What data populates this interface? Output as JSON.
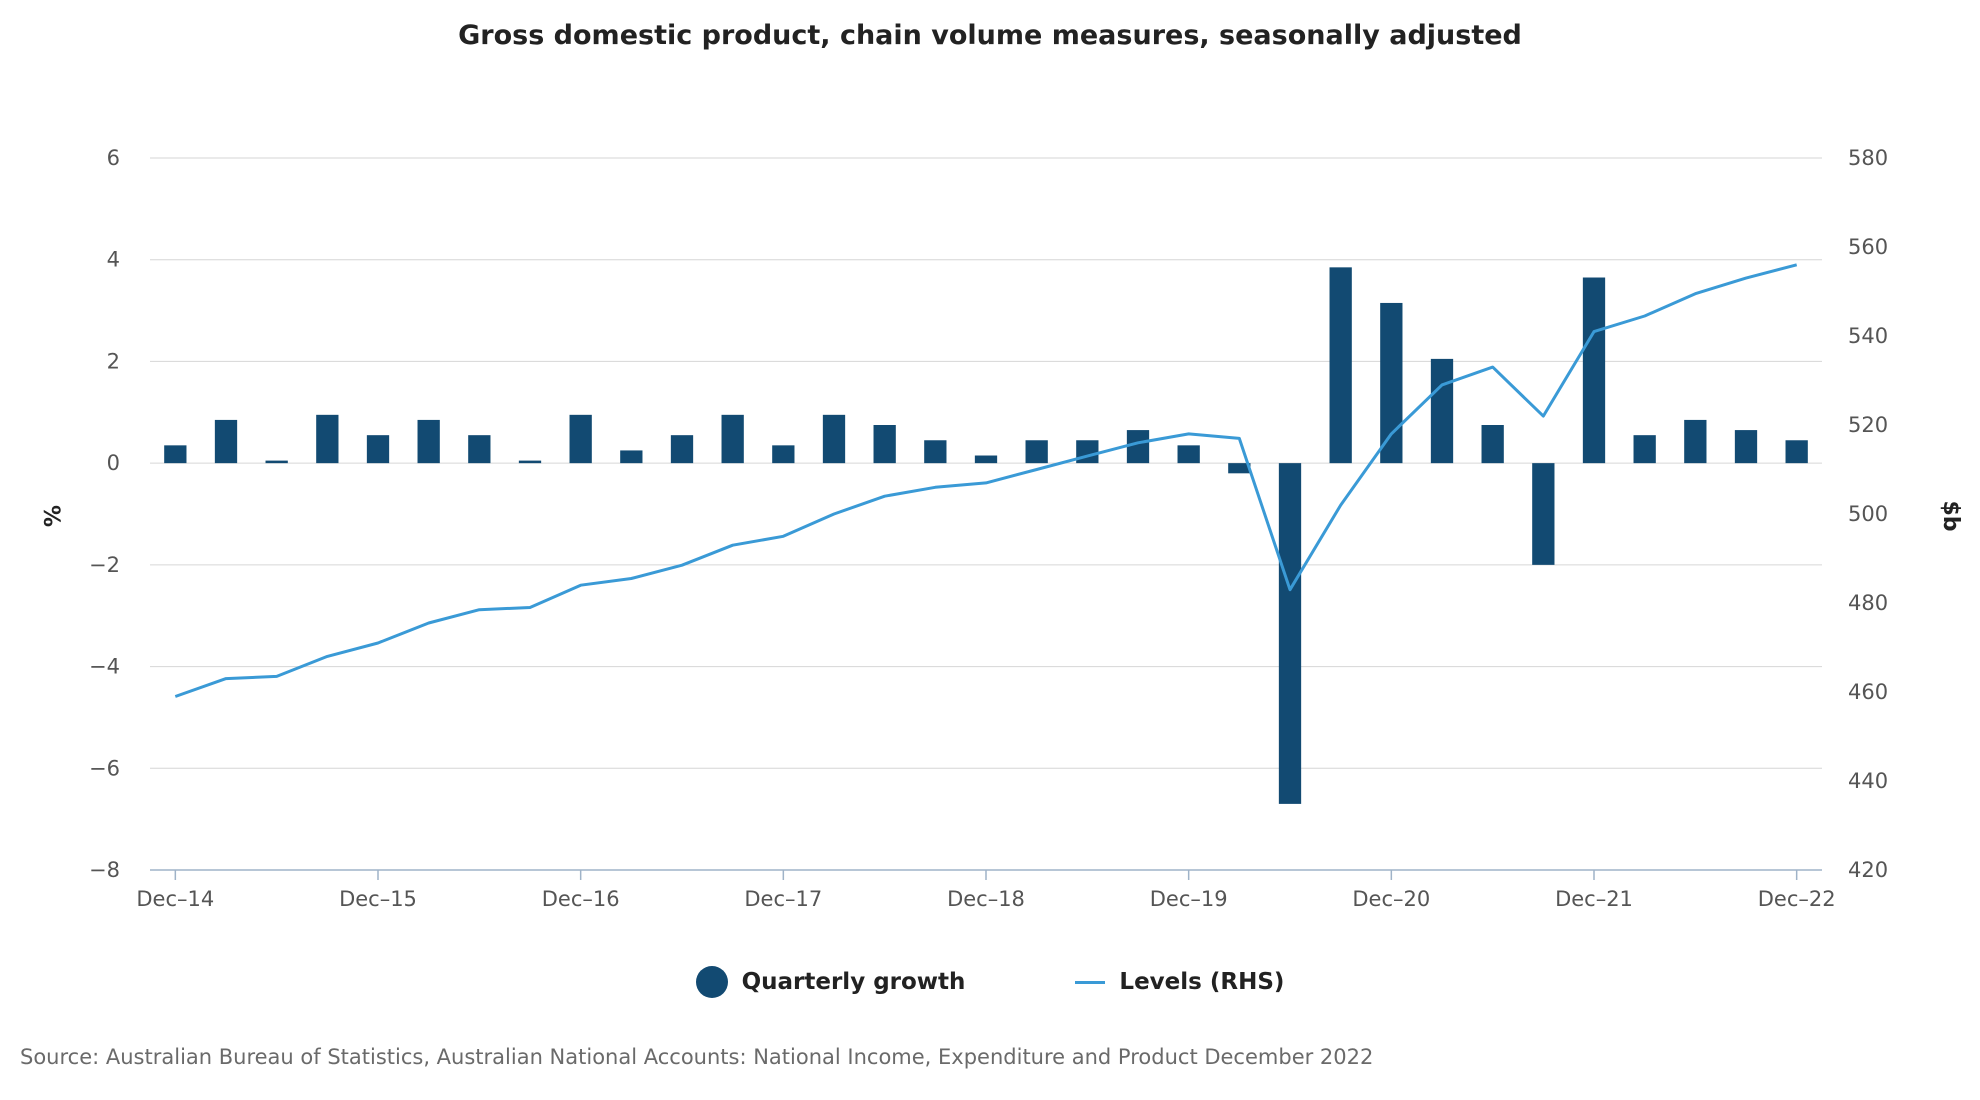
{
  "chart_data": {
    "type": "bar",
    "title": "Gross domestic product, chain volume measures, seasonally adjusted",
    "xlabel": "",
    "ylabel_left": "%",
    "ylabel_right": "$b",
    "ylim_left": [
      -8,
      6
    ],
    "ylim_right": [
      420,
      580
    ],
    "yticks_left": [
      "6",
      "4",
      "2",
      "0",
      "−2",
      "−4",
      "−6",
      "−8"
    ],
    "yticks_left_values": [
      6,
      4,
      2,
      0,
      -2,
      -4,
      -6,
      -8
    ],
    "yticks_right": [
      "580",
      "560",
      "540",
      "520",
      "500",
      "480",
      "460",
      "440",
      "420"
    ],
    "yticks_right_values": [
      580,
      560,
      540,
      520,
      500,
      480,
      460,
      440,
      420
    ],
    "xtick_labels": [
      "Dec–14",
      "Dec–15",
      "Dec–16",
      "Dec–17",
      "Dec–18",
      "Dec–19",
      "Dec–20",
      "Dec–21",
      "Dec–22"
    ],
    "xtick_indices": [
      0,
      4,
      8,
      12,
      16,
      20,
      24,
      28,
      32
    ],
    "categories": [
      "Dec-14",
      "Mar-15",
      "Jun-15",
      "Sep-15",
      "Dec-15",
      "Mar-16",
      "Jun-16",
      "Sep-16",
      "Dec-16",
      "Mar-17",
      "Jun-17",
      "Sep-17",
      "Dec-17",
      "Mar-18",
      "Jun-18",
      "Sep-18",
      "Dec-18",
      "Mar-19",
      "Jun-19",
      "Sep-19",
      "Dec-19",
      "Mar-20",
      "Jun-20",
      "Sep-20",
      "Dec-20",
      "Mar-21",
      "Jun-21",
      "Sep-21",
      "Dec-21",
      "Mar-22",
      "Jun-22",
      "Sep-22",
      "Dec-22"
    ],
    "series": [
      {
        "name": "Quarterly growth",
        "type": "bar",
        "axis": "left",
        "color": "#124a72",
        "values": [
          0.35,
          0.85,
          0.05,
          0.95,
          0.55,
          0.85,
          0.55,
          0.05,
          0.95,
          0.25,
          0.55,
          0.95,
          0.35,
          0.95,
          0.75,
          0.45,
          0.15,
          0.45,
          0.45,
          0.65,
          0.35,
          -0.2,
          -6.7,
          3.85,
          3.15,
          2.05,
          0.75,
          -2.0,
          3.65,
          0.55,
          0.85,
          0.65,
          0.45
        ]
      },
      {
        "name": "Levels (RHS)",
        "type": "line",
        "axis": "right",
        "color": "#3a9ad6",
        "values": [
          459,
          463,
          463.5,
          468,
          471,
          475.5,
          478.5,
          479,
          484,
          485.5,
          488.5,
          493,
          495,
          500,
          504,
          506,
          507,
          510,
          513,
          516,
          518,
          517,
          483,
          502,
          518,
          529,
          533,
          522,
          541,
          544.5,
          549.5,
          553,
          556
        ]
      }
    ]
  },
  "legend": {
    "bar_label": "Quarterly growth",
    "line_label": "Levels (RHS)"
  },
  "source": "Source: Australian Bureau of Statistics, Australian National Accounts: National Income, Expenditure and Product December 2022",
  "colors": {
    "bar": "#124a72",
    "line": "#3a9ad6",
    "grid": "#d6d6d6",
    "axis": "#9fb3c8"
  }
}
